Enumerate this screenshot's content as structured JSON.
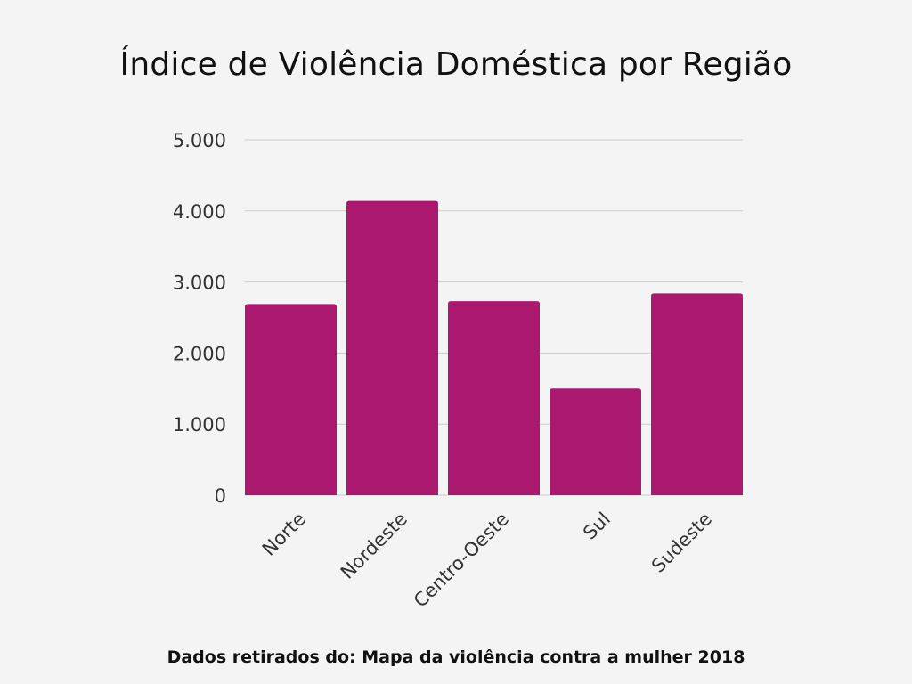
{
  "title": "Índice de Violência Doméstica por Região",
  "source_note": "Dados retirados do: Mapa da violência contra a mulher 2018",
  "colors": {
    "bar": "#aa1870",
    "grid": "#cccccc",
    "background": "#f4f4f4",
    "text": "#333333"
  },
  "chart_data": {
    "type": "bar",
    "categories": [
      "Norte",
      "Nordeste",
      "Centro-Oeste",
      "Sul",
      "Sudeste"
    ],
    "values": [
      2690,
      4140,
      2730,
      1500,
      2840
    ],
    "ylim": [
      0,
      5000
    ],
    "yticks": [
      0,
      1000,
      2000,
      3000,
      4000,
      5000
    ],
    "ytick_labels": [
      "0",
      "1.000",
      "2.000",
      "3.000",
      "4.000",
      "5.000"
    ],
    "grid": true,
    "legend": "none"
  }
}
